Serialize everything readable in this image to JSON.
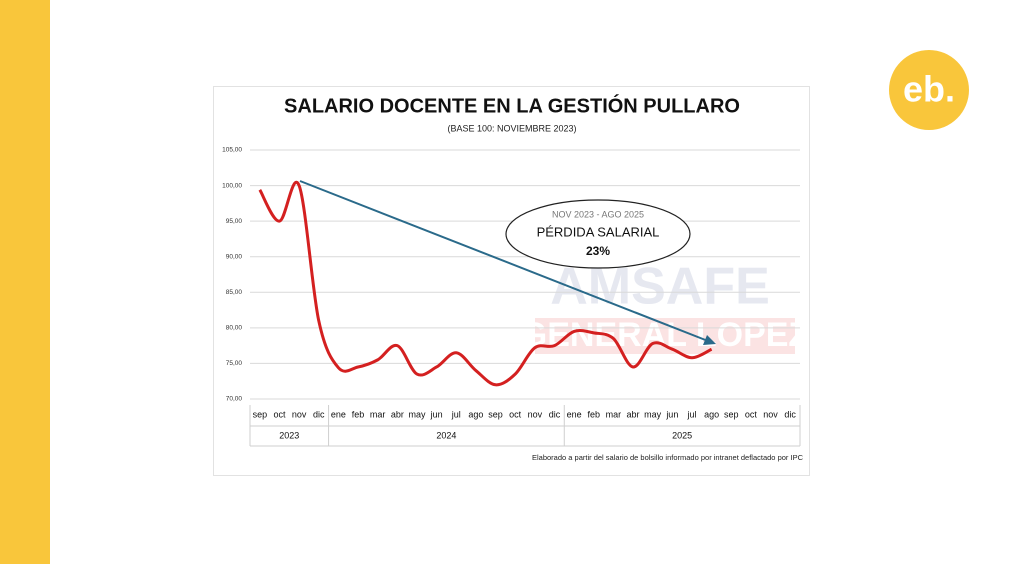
{
  "logo": "eb.",
  "watermark": [
    "AMSAFE",
    "GENERAL LOPEZ"
  ],
  "chart_data": {
    "type": "line",
    "title": "SALARIO DOCENTE EN LA GESTIÓN PULLARO",
    "subtitle": "(BASE 100: NOVIEMBRE 2023)",
    "annotation": [
      "NOV 2023 - AGO 2025",
      "PÉRDIDA SALARIAL",
      "23%"
    ],
    "source": "Elaborado a partir del salario de bolsillo informado por intranet deflactado por IPC",
    "categories": [
      "sep",
      "oct",
      "nov",
      "dic",
      "ene",
      "feb",
      "mar",
      "abr",
      "may",
      "jun",
      "jul",
      "ago",
      "sep",
      "oct",
      "nov",
      "dic",
      "ene",
      "feb",
      "mar",
      "abr",
      "may",
      "jun",
      "jul",
      "ago",
      "sep",
      "oct",
      "nov",
      "dic"
    ],
    "years": [
      "2023",
      "2024",
      "2025"
    ],
    "series": [
      {
        "color": "#d42020",
        "values": [
          99.4,
          95,
          100,
          81,
          74.4,
          74.5,
          75.5,
          77.5,
          73.5,
          74.5,
          76.5,
          74,
          72,
          73.5,
          77.2,
          77.5,
          79.5,
          79.3,
          78.5,
          74.5,
          77.8,
          77,
          75.8,
          77,
          null,
          null,
          null,
          null
        ]
      }
    ],
    "ylim": [
      70,
      105
    ],
    "yticks": [
      {
        "value": 70,
        "label": "70,00"
      },
      {
        "value": 75,
        "label": "75,00"
      },
      {
        "value": 80,
        "label": "80,00"
      },
      {
        "value": 85,
        "label": "85,00"
      },
      {
        "value": 90,
        "label": "90,00"
      },
      {
        "value": 95,
        "label": "95,00"
      },
      {
        "value": 100,
        "label": "100,00"
      },
      {
        "value": 105,
        "label": "105,00"
      }
    ],
    "grid": true
  }
}
